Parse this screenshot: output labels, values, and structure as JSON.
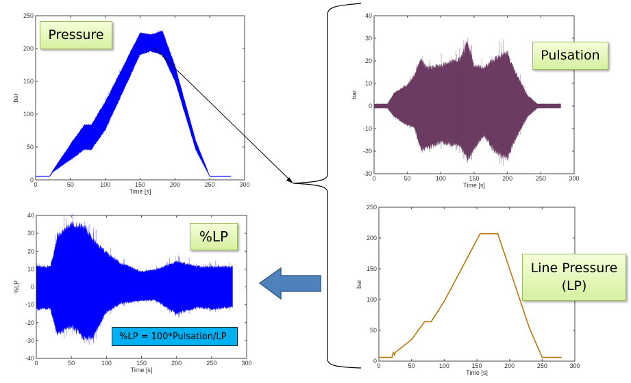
{
  "labels": {
    "pressure": "Pressure",
    "pulsation": "Pulsation",
    "line_pressure_1": "Line Pressure",
    "line_pressure_2": "(LP)",
    "percent_lp": "%LP",
    "formula": "%LP = 100*Pulsation/LP"
  },
  "colors": {
    "pressure": "#0000ff",
    "pulsation": "#6b3b62",
    "line_pressure": "#b8760a",
    "percent_lp": "#0000ff",
    "arrow_fill": "#4f81bd",
    "arrow_border": "#385d8a",
    "formula_bg": "#00b0f0"
  },
  "chart_data": [
    {
      "id": "pressure",
      "type": "area",
      "title": "Pressure",
      "xlabel": "Time [s]",
      "ylabel": "bar",
      "xlim": [
        0,
        300
      ],
      "ylim": [
        0,
        250
      ],
      "xticks": [
        0,
        50,
        100,
        150,
        200,
        250,
        300
      ],
      "yticks": [
        0,
        50,
        100,
        150,
        200,
        250
      ],
      "envelope": {
        "x": [
          0,
          20,
          25,
          50,
          70,
          80,
          100,
          150,
          165,
          182,
          200,
          230,
          250,
          280
        ],
        "upper": [
          6,
          6,
          15,
          55,
          85,
          85,
          120,
          225,
          222,
          228,
          175,
          60,
          6,
          6
        ],
        "lower": [
          5,
          5,
          12,
          30,
          45,
          45,
          75,
          190,
          195,
          190,
          150,
          45,
          5,
          5
        ]
      }
    },
    {
      "id": "pulsation",
      "type": "area",
      "title": "Pulsation",
      "xlabel": "Time [s]",
      "ylabel": "bar",
      "xlim": [
        0,
        300
      ],
      "ylim": [
        -30,
        40
      ],
      "xticks": [
        0,
        50,
        100,
        150,
        200,
        250,
        300
      ],
      "yticks": [
        -30,
        -20,
        -10,
        0,
        10,
        20,
        30,
        40
      ],
      "envelope": {
        "x": [
          0,
          20,
          30,
          50,
          60,
          70,
          80,
          100,
          130,
          140,
          150,
          165,
          180,
          200,
          210,
          230,
          245,
          250,
          280
        ],
        "upper": [
          1,
          1,
          6,
          10,
          14,
          22,
          18,
          19,
          22,
          30,
          19,
          18,
          22,
          25,
          17,
          5,
          1,
          1,
          1
        ],
        "lower": [
          -1,
          -1,
          -5,
          -9,
          -10,
          -20,
          -20,
          -17,
          -19,
          -25,
          -20,
          -14,
          -21,
          -25,
          -17,
          -5,
          -1,
          -1,
          -1
        ]
      }
    },
    {
      "id": "line_pressure",
      "type": "line",
      "title": "Line Pressure (LP)",
      "xlabel": "Time [s]",
      "ylabel": "bar",
      "xlim": [
        0,
        300
      ],
      "ylim": [
        0,
        250
      ],
      "xticks": [
        0,
        50,
        100,
        150,
        200,
        250,
        300
      ],
      "yticks": [
        0,
        50,
        100,
        150,
        200,
        250
      ],
      "x": [
        0,
        20,
        22,
        24,
        25,
        50,
        70,
        80,
        100,
        155,
        182,
        200,
        230,
        250,
        280
      ],
      "y": [
        6,
        6,
        14,
        10,
        14,
        35,
        64,
        64,
        97,
        207,
        207,
        150,
        55,
        6,
        6
      ]
    },
    {
      "id": "percent_lp",
      "type": "area",
      "title": "%LP",
      "xlabel": "Time [s]",
      "ylabel": "%LP",
      "xlim": [
        0,
        300
      ],
      "ylim": [
        -40,
        40
      ],
      "xticks": [
        0,
        50,
        100,
        150,
        200,
        250,
        300
      ],
      "yticks": [
        -40,
        -30,
        -20,
        -10,
        0,
        10,
        20,
        30,
        40
      ],
      "envelope": {
        "x": [
          0,
          20,
          25,
          30,
          50,
          70,
          80,
          100,
          120,
          150,
          170,
          200,
          230,
          250,
          280
        ],
        "upper": [
          12,
          12,
          20,
          30,
          37,
          35,
          28,
          20,
          14,
          9,
          10,
          15,
          12,
          12,
          12
        ],
        "lower": [
          -13,
          -13,
          -20,
          -28,
          -24,
          -31,
          -30,
          -15,
          -10,
          -8,
          -8,
          -16,
          -12,
          -13,
          -12
        ]
      }
    }
  ]
}
